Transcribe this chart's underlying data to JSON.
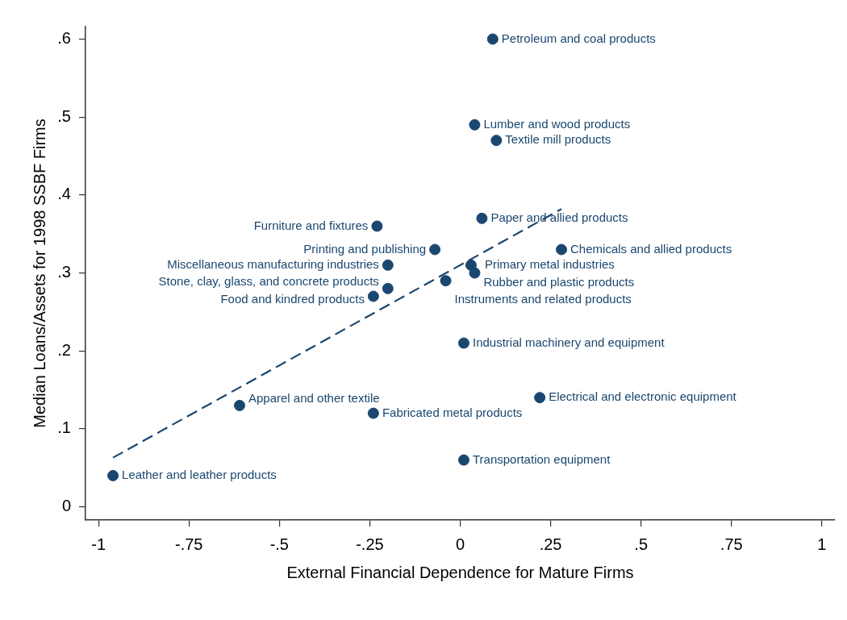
{
  "chart_data": {
    "type": "scatter",
    "xlabel": "External Financial Dependence for Mature Firms",
    "ylabel": "Median Loans/Assets for 1998 SSBF Firms",
    "xlim": [
      -1.036,
      1.036
    ],
    "ylim": [
      -0.017,
      0.616
    ],
    "xticks": [
      -1,
      {
        "value": -0.75,
        "label": "-.75"
      },
      {
        "value": -0.5,
        "label": "-.5"
      },
      {
        "value": -0.25,
        "label": "-.25"
      },
      0,
      {
        "value": 0.25,
        "label": ".25"
      },
      {
        "value": 0.5,
        "label": ".5"
      },
      {
        "value": 0.75,
        "label": ".75"
      },
      1
    ],
    "yticks": [
      0,
      {
        "value": 0.1,
        "label": ".1"
      },
      {
        "value": 0.2,
        "label": ".2"
      },
      {
        "value": 0.3,
        "label": ".3"
      },
      {
        "value": 0.4,
        "label": ".4"
      },
      {
        "value": 0.5,
        "label": ".5"
      },
      {
        "value": 0.6,
        "label": ".6"
      }
    ],
    "series": [
      {
        "type": "scatter",
        "color": "#1a476f",
        "marker": "circle",
        "x": [
          0.09,
          0.04,
          0.1,
          0.06,
          -0.23,
          -0.07,
          0.28,
          -0.2,
          0.03,
          0.04,
          -0.04,
          -0.2,
          -0.24,
          0.01,
          0.22,
          -0.61,
          -0.24,
          0.01,
          -0.96
        ],
        "values": [
          0.6,
          0.49,
          0.47,
          0.37,
          0.36,
          0.33,
          0.33,
          0.31,
          0.31,
          0.3,
          0.29,
          0.28,
          0.27,
          0.21,
          0.14,
          0.13,
          0.12,
          0.06,
          0.04
        ]
      },
      {
        "type": "line",
        "color": "#1a476f",
        "marker": "none",
        "line_style": "dashed",
        "x": [
          -0.96,
          0.28
        ],
        "values": [
          0.063,
          0.382
        ]
      }
    ],
    "annotations": [
      {
        "text": "Petroleum and coal products",
        "x": 0.09,
        "y": 0.6
      },
      {
        "text": "Lumber and wood products",
        "x": 0.04,
        "y": 0.49
      },
      {
        "text": "Textile mill products",
        "x": 0.1,
        "y": 0.47
      },
      {
        "text": "Paper and allied products",
        "x": 0.06,
        "y": 0.37
      },
      {
        "text": "Furniture and fixtures",
        "x": -0.23,
        "y": 0.36
      },
      {
        "text": "Printing and publishing",
        "x": -0.07,
        "y": 0.33
      },
      {
        "text": "Chemicals and allied products",
        "x": 0.28,
        "y": 0.33
      },
      {
        "text": "Miscellaneous manufacturing industries",
        "x": -0.2,
        "y": 0.31
      },
      {
        "text": "Primary metal industries",
        "x": 0.03,
        "y": 0.31
      },
      {
        "text": "Rubber and plastic products",
        "x": 0.04,
        "y": 0.3
      },
      {
        "text": "Instruments and related products",
        "x": -0.04,
        "y": 0.29
      },
      {
        "text": "Stone, clay, glass, and concrete products",
        "x": -0.2,
        "y": 0.28
      },
      {
        "text": "Food and kindred products",
        "x": -0.24,
        "y": 0.27
      },
      {
        "text": "Industrial machinery and equipment",
        "x": 0.01,
        "y": 0.21
      },
      {
        "text": "Electrical and electronic equipment",
        "x": 0.22,
        "y": 0.14
      },
      {
        "text": "Apparel and other textile",
        "x": -0.61,
        "y": 0.13
      },
      {
        "text": "Fabricated metal products",
        "x": -0.24,
        "y": 0.12
      },
      {
        "text": "Transportation equipment",
        "x": 0.01,
        "y": 0.06
      },
      {
        "text": "Leather and leather products",
        "x": -0.96,
        "y": 0.04
      }
    ]
  }
}
